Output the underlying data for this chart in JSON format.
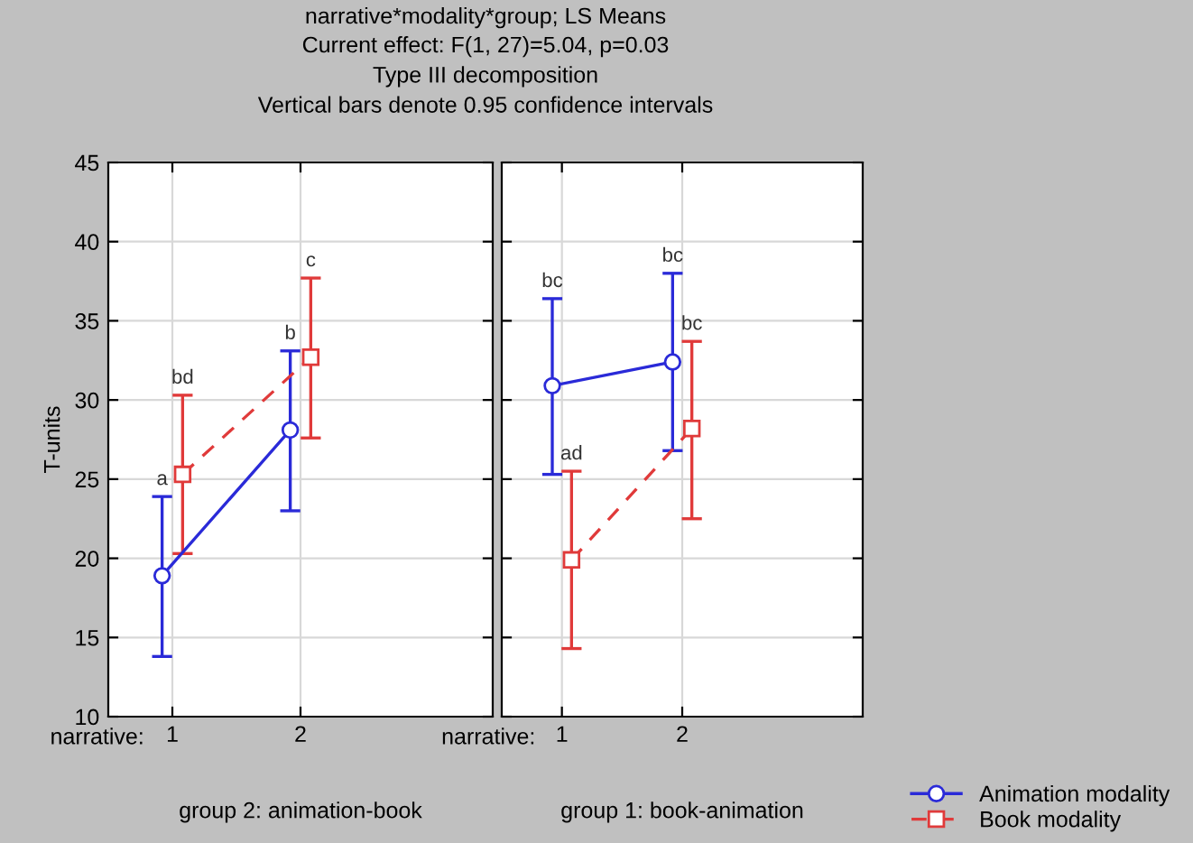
{
  "chart_data": [
    {
      "type": "line",
      "title": "narrative*modality*group; LS Means",
      "subtitle": "Current effect: F(1, 27)=5.04, p=0.03\nType III decomposition\nVertical bars denote 0.95 confidence intervals",
      "xlabel": "group 2: animation-book",
      "ylabel": "T-units",
      "categories": [
        "1",
        "2"
      ],
      "ylim": [
        10,
        45
      ],
      "yticks": [
        10,
        15,
        20,
        25,
        30,
        35,
        40,
        45
      ],
      "grid": true,
      "legend": "bottom right",
      "series": [
        {
          "name": "Animation modality",
          "color": "#2a2ad8",
          "values": [
            18.9,
            28.1
          ],
          "errors": [
            [
              13.8,
              23.9
            ],
            [
              23.0,
              33.1
            ]
          ],
          "marker": "circle",
          "line_style": "solid"
        },
        {
          "name": "Book modality",
          "color": "#e03a3a",
          "values": [
            25.3,
            32.7
          ],
          "errors": [
            [
              20.3,
              30.3
            ],
            [
              27.6,
              37.7
            ]
          ],
          "marker": "square",
          "line_style": "dashed"
        }
      ],
      "annotations": [
        "narrative:",
        {
          "text": "a",
          "x": "1",
          "y": 23.9
        },
        {
          "text": "b",
          "x": "2",
          "y": 33.1
        },
        {
          "text": "bd",
          "x": "1",
          "y": 30.3
        },
        {
          "text": "c",
          "x": "2",
          "y": 37.7
        }
      ]
    },
    {
      "type": "line",
      "xlabel": "group 1: book-animation",
      "categories": [
        "1",
        "2"
      ],
      "ylim": [
        10,
        45
      ],
      "yticks": [
        10,
        15,
        20,
        25,
        30,
        35,
        40,
        45
      ],
      "grid": true,
      "tick_labels": "x",
      "series": [
        {
          "color": "#2a2ad8",
          "values": [
            30.9,
            32.4
          ],
          "errors": [
            [
              25.3,
              36.4
            ],
            [
              26.8,
              38.0
            ]
          ],
          "marker": "circle",
          "line_style": "solid"
        },
        {
          "color": "#e03a3a",
          "values": [
            19.9,
            28.2
          ],
          "errors": [
            [
              14.3,
              25.5
            ],
            [
              22.5,
              33.7
            ]
          ],
          "marker": "square",
          "line_style": "dashed"
        }
      ],
      "annotations": [
        "narrative:",
        {
          "text": "bc",
          "x": "1",
          "y": 36.4
        },
        {
          "text": "bc",
          "x": "2",
          "y": 38.0
        },
        {
          "text": "ad",
          "x": "1",
          "y": 25.5
        },
        {
          "text": "bc",
          "x": "2",
          "y": 33.7
        }
      ]
    }
  ]
}
